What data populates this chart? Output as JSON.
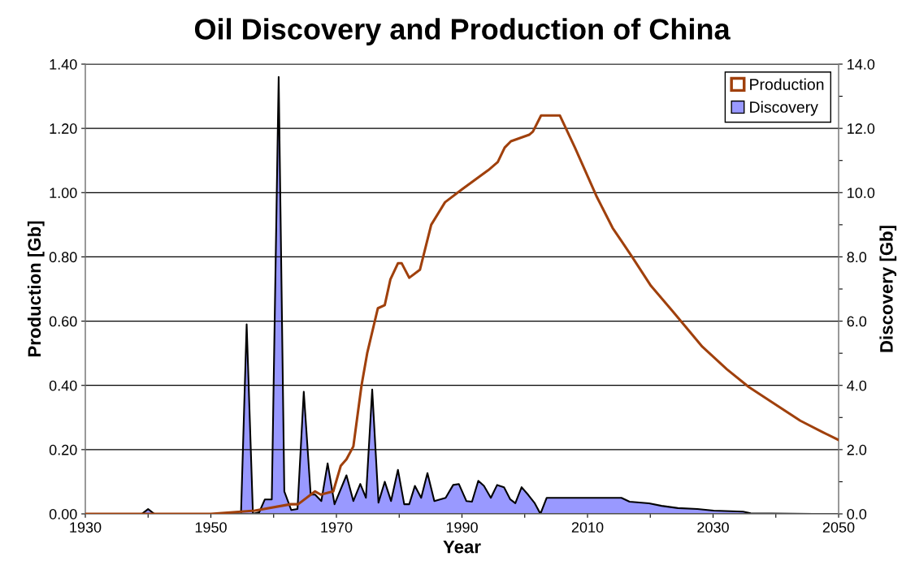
{
  "chart_data": {
    "type": "line",
    "title": "Oil Discovery and Production of China",
    "xlabel": "Year",
    "ylabel": "Production [Gb]",
    "y2label": "Discovery [Gb]",
    "xlim": [
      1930,
      2050
    ],
    "xticks": [
      1930,
      {
        "value": 1940,
        "label": null
      },
      1950,
      {
        "value": 1960,
        "label": null
      },
      1970,
      {
        "value": 1980,
        "label": null
      },
      1990,
      {
        "value": 2000,
        "label": null
      },
      2010,
      {
        "value": 2020,
        "label": null
      },
      2030,
      {
        "value": 2040,
        "label": null
      },
      2050
    ],
    "ylim": [
      0,
      1.4
    ],
    "yticks": [
      {
        "value": 0,
        "label": "0.00"
      },
      {
        "value": 0.2,
        "label": "0.20"
      },
      {
        "value": 0.4,
        "label": "0.40"
      },
      {
        "value": 0.6,
        "label": "0.60"
      },
      {
        "value": 0.8,
        "label": "0.80"
      },
      {
        "value": 1.0,
        "label": "1.00"
      },
      {
        "value": 1.2,
        "label": "1.20"
      },
      {
        "value": 1.4,
        "label": "1.40"
      }
    ],
    "y2lim": [
      0,
      14
    ],
    "y2ticks": [
      {
        "value": 0,
        "label": "0.0"
      },
      {
        "value": 1,
        "label": null
      },
      {
        "value": 2,
        "label": "2.0"
      },
      {
        "value": 3,
        "label": null
      },
      {
        "value": 4,
        "label": "4.0"
      },
      {
        "value": 5,
        "label": null
      },
      {
        "value": 6,
        "label": "6.0"
      },
      {
        "value": 7,
        "label": null
      },
      {
        "value": 8,
        "label": "8.0"
      },
      {
        "value": 9,
        "label": null
      },
      {
        "value": 10,
        "label": "10.0"
      },
      {
        "value": 11,
        "label": null
      },
      {
        "value": 12,
        "label": "12.0"
      },
      {
        "value": 13,
        "label": null
      },
      {
        "value": 14,
        "label": "14.0"
      }
    ],
    "grid": "y",
    "legend": "top right",
    "marker": "none",
    "line_style": "solid",
    "series": [
      {
        "name": "Production",
        "color": "#a0400c",
        "x": [
          1930,
          1950,
          1957,
          1962.7,
          1963.9,
          1966.6,
          1967.5,
          1969.5,
          1970.7,
          1971.6,
          1972.7,
          1974,
          1974.9,
          1976.6,
          1977.7,
          1978.6,
          1979.8,
          1980.4,
          1981.6,
          1983.3,
          1985.1,
          1987.3,
          1990,
          1994.2,
          1995.7,
          1996.8,
          1997.8,
          2000.7,
          2001.3,
          2002.6,
          2005.6,
          2008,
          2011.4,
          2014,
          2017.1,
          2020.1,
          2023.6,
          2028.3,
          2032.2,
          2035.7,
          2039.2,
          2043.9,
          2047.4,
          2050
        ],
        "values": [
          0,
          0,
          0.01,
          0.03,
          0.03,
          0.07,
          0.06,
          0.07,
          0.15,
          0.17,
          0.21,
          0.4,
          0.5,
          0.64,
          0.65,
          0.73,
          0.78,
          0.78,
          0.735,
          0.76,
          0.9,
          0.97,
          1.01,
          1.07,
          1.095,
          1.14,
          1.16,
          1.18,
          1.19,
          1.24,
          1.24,
          1.14,
          0.99,
          0.89,
          0.8,
          0.71,
          0.63,
          0.52,
          0.45,
          0.395,
          0.35,
          0.29,
          0.255,
          0.23
        ]
      },
      {
        "name": "Discovery",
        "type": "area",
        "axis": "y2",
        "color": "#9999ff",
        "x": [
          1930,
          1939,
          1940,
          1941,
          1954.8,
          1955.7,
          1956.7,
          1957.7,
          1958.6,
          1959.7,
          1960.8,
          1961.7,
          1962.8,
          1963.8,
          1964.8,
          1965.9,
          1966.6,
          1967.6,
          1968.6,
          1969.7,
          1971.6,
          1972.7,
          1973.8,
          1974.7,
          1975.7,
          1976.7,
          1977.7,
          1978.7,
          1979.8,
          1980.8,
          1981.6,
          1982.5,
          1983.5,
          1984.5,
          1985.6,
          1987.4,
          1988.6,
          1989.5,
          1990.7,
          1991.6,
          1992.6,
          1993.5,
          1994.6,
          1995.6,
          1996.7,
          1997.7,
          1998.5,
          1999.5,
          2000.6,
          2001.6,
          2002.5,
          2003.5,
          2015.4,
          2016.7,
          2019.8,
          2021.8,
          2024.4,
          2027.5,
          2030.1,
          2034.8,
          2036,
          2046,
          2050
        ],
        "values": [
          0,
          0,
          0.15,
          0,
          0,
          5.9,
          0,
          0.05,
          0.45,
          0.45,
          13.6,
          0.7,
          0.12,
          0.15,
          3.8,
          0.6,
          0.6,
          0.4,
          1.57,
          0.3,
          1.2,
          0.4,
          0.93,
          0.5,
          3.87,
          0.35,
          1.0,
          0.4,
          1.37,
          0.3,
          0.3,
          0.87,
          0.5,
          1.27,
          0.4,
          0.5,
          0.9,
          0.93,
          0.4,
          0.38,
          1.03,
          0.87,
          0.5,
          0.9,
          0.83,
          0.45,
          0.33,
          0.83,
          0.58,
          0.33,
          0,
          0.5,
          0.5,
          0.38,
          0.33,
          0.25,
          0.18,
          0.15,
          0.1,
          0.07,
          0.02,
          0,
          0
        ]
      }
    ]
  }
}
